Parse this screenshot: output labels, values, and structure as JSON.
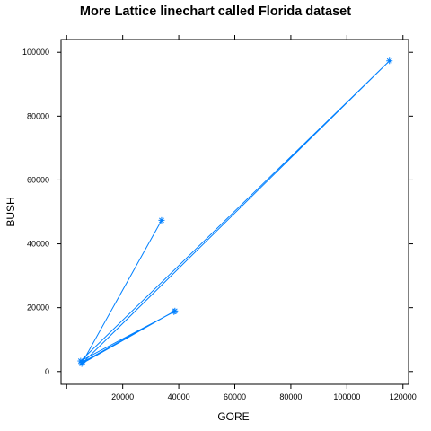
{
  "chart_data": {
    "type": "line",
    "title": "More Lattice linechart called Florida dataset",
    "xlabel": "GORE",
    "ylabel": "BUSH",
    "xlim": [
      -2000,
      122000
    ],
    "ylim": [
      -4000,
      104000
    ],
    "x_ticks": [
      20000,
      40000,
      60000,
      80000,
      100000,
      120000
    ],
    "y_ticks": [
      0,
      20000,
      40000,
      60000,
      80000,
      100000
    ],
    "x_tick_labels": [
      "20000",
      "40000",
      "60000",
      "80000",
      "100000",
      "120000"
    ],
    "y_tick_labels": [
      "0",
      "20000",
      "40000",
      "60000",
      "80000",
      "100000"
    ],
    "grid": false,
    "legend": "none",
    "color": "#0080ff",
    "marker": "asterisk",
    "x": [
      33864,
      5610,
      38637,
      5413,
      115185,
      5000,
      38300
    ],
    "y": [
      47365,
      2873,
      18972,
      2454,
      97318,
      3300,
      18700
    ]
  }
}
